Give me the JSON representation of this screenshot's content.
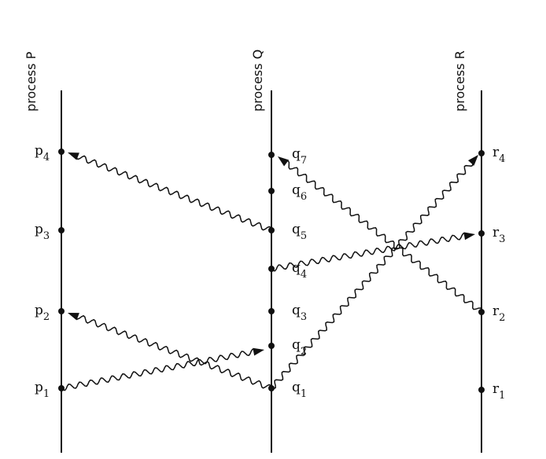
{
  "processes": [
    {
      "label": "process P",
      "events": [
        {
          "name": "p",
          "sub": "1"
        },
        {
          "name": "p",
          "sub": "2"
        },
        {
          "name": "p",
          "sub": "3"
        },
        {
          "name": "p",
          "sub": "4"
        }
      ]
    },
    {
      "label": "process Q",
      "events": [
        {
          "name": "q",
          "sub": "1"
        },
        {
          "name": "q",
          "sub": "2"
        },
        {
          "name": "q",
          "sub": "3"
        },
        {
          "name": "q",
          "sub": "4"
        },
        {
          "name": "q",
          "sub": "5"
        },
        {
          "name": "q",
          "sub": "6"
        },
        {
          "name": "q",
          "sub": "7"
        }
      ]
    },
    {
      "label": "process R",
      "events": [
        {
          "name": "r",
          "sub": "1"
        },
        {
          "name": "r",
          "sub": "2"
        },
        {
          "name": "r",
          "sub": "3"
        },
        {
          "name": "r",
          "sub": "4"
        }
      ]
    }
  ]
}
